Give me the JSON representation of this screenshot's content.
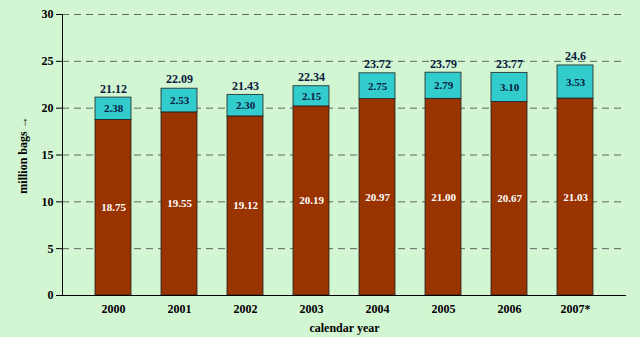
{
  "chart_data": {
    "type": "bar",
    "stacked": true,
    "data_labels": true,
    "grid": true,
    "x_label": "calendar year",
    "y_label": "million bags",
    "categories": [
      "2000",
      "2001",
      "2002",
      "2003",
      "2004",
      "2005",
      "2006",
      "2007*"
    ],
    "series": [
      {
        "color": "#993300",
        "values": [
          18.75,
          19.55,
          19.12,
          20.19,
          20.97,
          21.0,
          20.67,
          21.03
        ],
        "value_labels": [
          "18.75",
          "19.55",
          "19.12",
          "20.19",
          "20.97",
          "21.00",
          "20.67",
          "21.03"
        ]
      },
      {
        "color": "#33cccc",
        "values": [
          2.38,
          2.53,
          2.3,
          2.15,
          2.75,
          2.79,
          3.1,
          3.53
        ],
        "value_labels": [
          "2.38",
          "2.53",
          "2.30",
          "2.15",
          "2.75",
          "2.79",
          "3.10",
          "3.53"
        ]
      }
    ],
    "totals": [
      21.12,
      22.09,
      21.43,
      22.34,
      23.72,
      23.79,
      23.77,
      24.6
    ],
    "ylim": [
      0,
      30
    ],
    "yticks": [
      0,
      5,
      10,
      15,
      20,
      25,
      30
    ]
  }
}
